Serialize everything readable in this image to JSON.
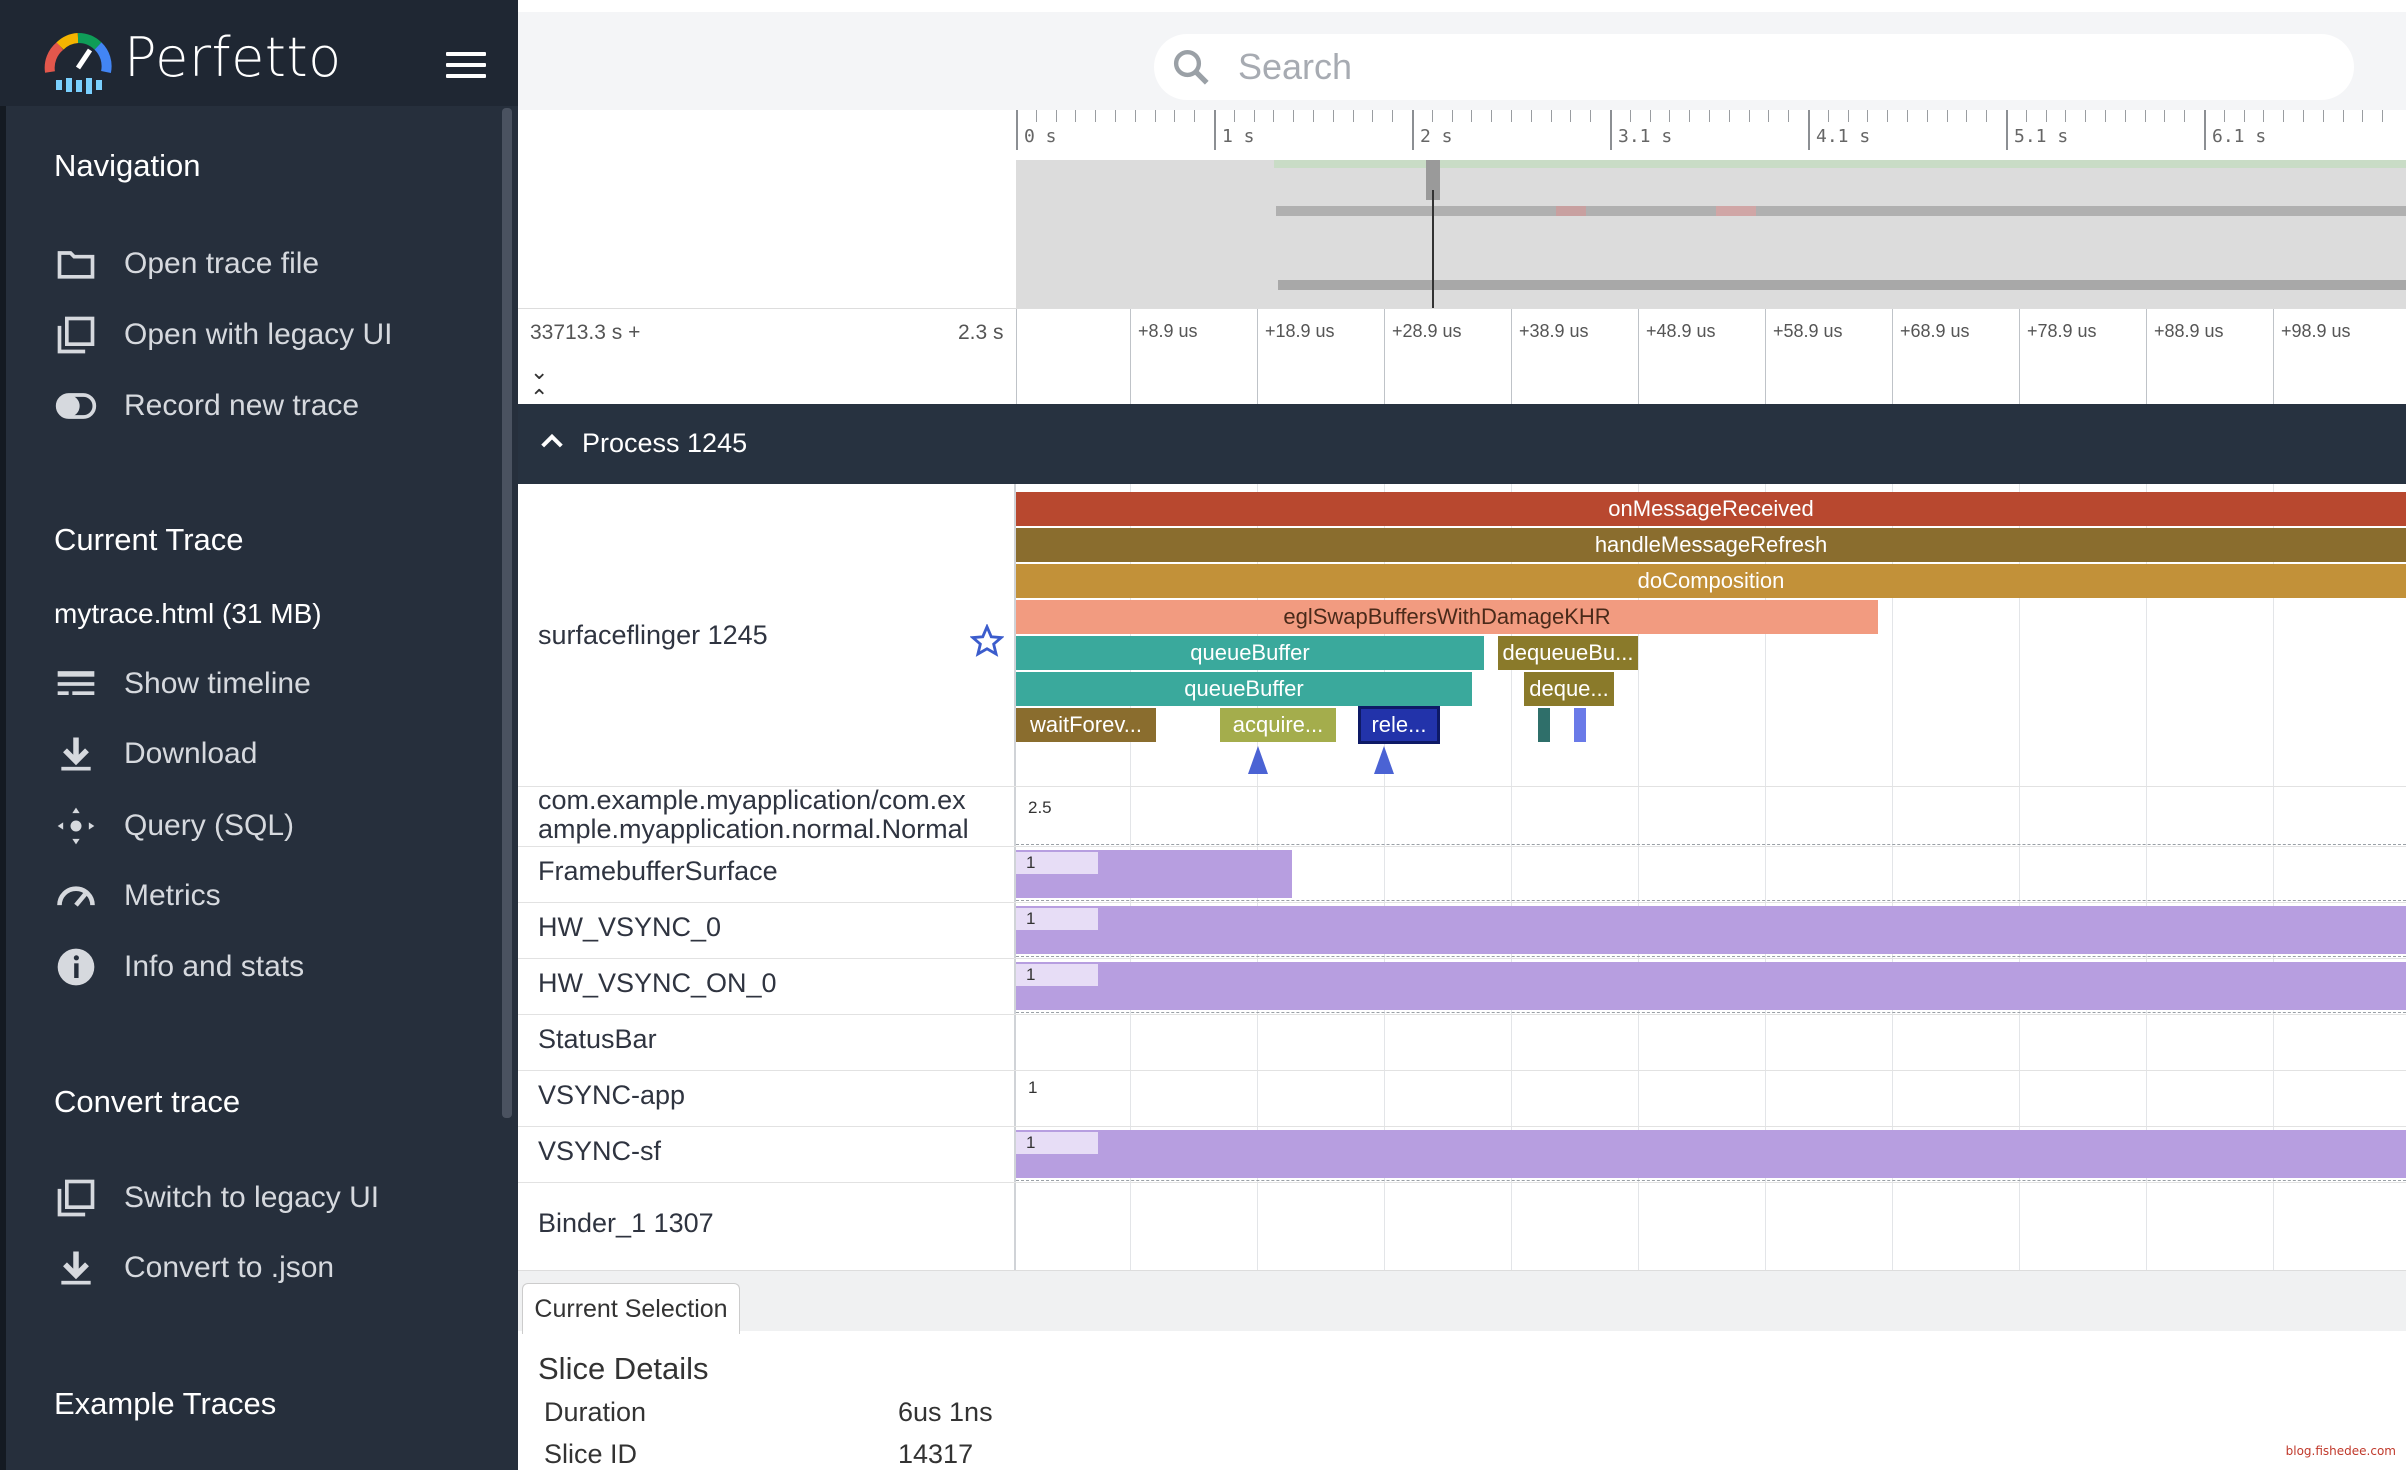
{
  "app": {
    "name": "Perfetto"
  },
  "sidebar": {
    "navigation": {
      "title": "Navigation",
      "items": [
        {
          "label": "Open trace file",
          "icon": "folder-icon"
        },
        {
          "label": "Open with legacy UI",
          "icon": "filter-none-icon"
        },
        {
          "label": "Record new trace",
          "icon": "toggle-icon"
        }
      ]
    },
    "current_trace": {
      "title": "Current Trace",
      "trace_name": "mytrace.html (31 MB)",
      "items": [
        {
          "label": "Show timeline",
          "icon": "timeline-icon"
        },
        {
          "label": "Download",
          "icon": "download-icon"
        },
        {
          "label": "Query (SQL)",
          "icon": "query-icon"
        },
        {
          "label": "Metrics",
          "icon": "speedometer-icon"
        },
        {
          "label": "Info and stats",
          "icon": "info-icon"
        }
      ]
    },
    "convert": {
      "title": "Convert trace",
      "items": [
        {
          "label": "Switch to legacy UI",
          "icon": "filter-none-icon"
        },
        {
          "label": "Convert to .json",
          "icon": "download-icon"
        }
      ]
    },
    "examples": {
      "title": "Example Traces"
    }
  },
  "search": {
    "placeholder": "Search"
  },
  "overview": {
    "ticks": [
      "0 s",
      "1 s",
      "2 s",
      "3.1 s",
      "4.1 s",
      "5.1 s",
      "6.1 s"
    ]
  },
  "timeline": {
    "offset_label": "33713.3 s +",
    "span_label": "2.3 s",
    "ticks": [
      "+8.9 us",
      "+18.9 us",
      "+28.9 us",
      "+38.9 us",
      "+48.9 us",
      "+58.9 us",
      "+68.9 us",
      "+78.9 us",
      "+88.9 us",
      "+98.9 us"
    ]
  },
  "process": {
    "title": "Process 1245"
  },
  "tracks": {
    "thread": {
      "name": "surfaceflinger 1245",
      "slices": [
        {
          "label": "onMessageReceived",
          "color": "#b8482f"
        },
        {
          "label": "handleMessageRefresh",
          "color": "#8a6d2e"
        },
        {
          "label": "doComposition",
          "color": "#c29139"
        },
        {
          "label": "eglSwapBuffersWithDamageKHR",
          "color": "#f29b80",
          "text_color": "#4a2a1a"
        },
        {
          "label": "queueBuffer",
          "color": "#3aa99c"
        },
        {
          "label": "queueBuffer",
          "color": "#3aa99c"
        },
        {
          "label": "waitForev...",
          "color": "#8a6d2e"
        },
        {
          "label": "acquire...",
          "color": "#a4ad4c"
        },
        {
          "label": "rele...",
          "color": "#2233aa"
        },
        {
          "label": "dequeueBu...",
          "color": "#8a7a2a"
        },
        {
          "label": "deque...",
          "color": "#8a7a2a"
        }
      ]
    },
    "counters": [
      {
        "name": "com.example.myapplication/com.example.myapplication.normal.Normal",
        "value": "2.5"
      },
      {
        "name": "FramebufferSurface",
        "value": "1"
      },
      {
        "name": "HW_VSYNC_0",
        "value": "1"
      },
      {
        "name": "HW_VSYNC_ON_0",
        "value": "1"
      },
      {
        "name": "StatusBar",
        "value": ""
      },
      {
        "name": "VSYNC-app",
        "value": "1"
      },
      {
        "name": "VSYNC-sf",
        "value": "1"
      }
    ],
    "binder": {
      "name": "Binder_1 1307"
    }
  },
  "details": {
    "tab": "Current Selection",
    "header": "Slice Details",
    "rows": [
      {
        "key": "Duration",
        "value": "6us 1ns"
      },
      {
        "key": "Slice ID",
        "value": "14317"
      }
    ]
  },
  "watermark": "blog.fishedee.com",
  "colors": {
    "sidebar": "#262f3c",
    "process_header": "#273240",
    "counter": "#b79ee0"
  }
}
